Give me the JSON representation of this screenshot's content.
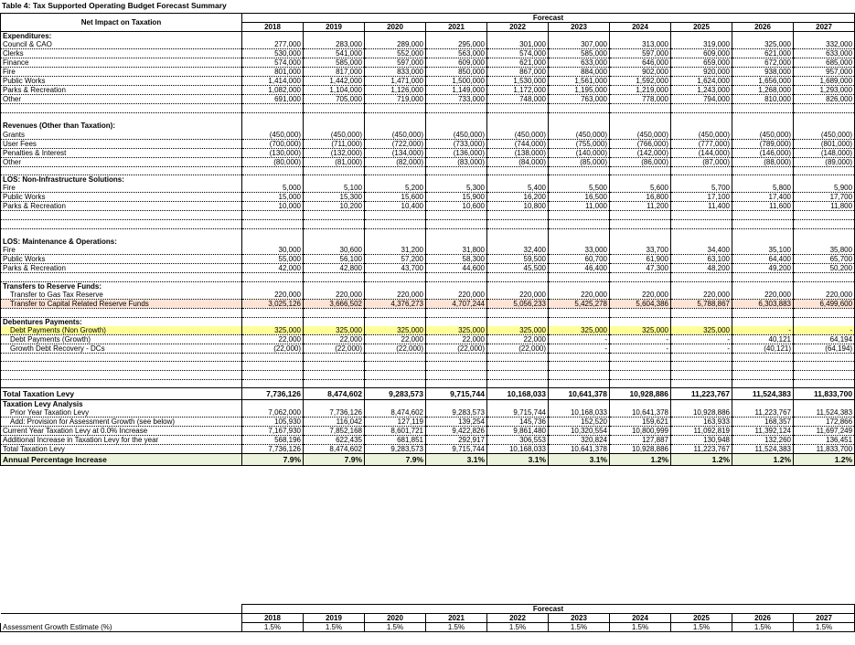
{
  "title": "Table 4: Tax Supported Operating Budget Forecast Summary",
  "header": {
    "row_label": "Net Impact on Taxation",
    "forecast": "Forecast",
    "years": [
      "2018",
      "2019",
      "2020",
      "2021",
      "2022",
      "2023",
      "2024",
      "2025",
      "2026",
      "2027"
    ]
  },
  "expenditures": {
    "heading": "Expenditures:",
    "rows": [
      {
        "label": "Council & CAO",
        "values": [
          "277,000",
          "283,000",
          "289,000",
          "295,000",
          "301,000",
          "307,000",
          "313,000",
          "319,000",
          "325,000",
          "332,000"
        ]
      },
      {
        "label": "Clerks",
        "values": [
          "530,000",
          "541,000",
          "552,000",
          "563,000",
          "574,000",
          "585,000",
          "597,000",
          "609,000",
          "621,000",
          "633,000"
        ]
      },
      {
        "label": "Finance",
        "values": [
          "574,000",
          "585,000",
          "597,000",
          "609,000",
          "621,000",
          "633,000",
          "646,000",
          "659,000",
          "672,000",
          "685,000"
        ]
      },
      {
        "label": "Fire",
        "values": [
          "801,000",
          "817,000",
          "833,000",
          "850,000",
          "867,000",
          "884,000",
          "902,000",
          "920,000",
          "938,000",
          "957,000"
        ]
      },
      {
        "label": "Public Works",
        "values": [
          "1,414,000",
          "1,442,000",
          "1,471,000",
          "1,500,000",
          "1,530,000",
          "1,561,000",
          "1,592,000",
          "1,624,000",
          "1,656,000",
          "1,689,000"
        ]
      },
      {
        "label": "Parks & Recreation",
        "values": [
          "1,082,000",
          "1,104,000",
          "1,126,000",
          "1,149,000",
          "1,172,000",
          "1,195,000",
          "1,219,000",
          "1,243,000",
          "1,268,000",
          "1,293,000"
        ]
      },
      {
        "label": "Other",
        "values": [
          "691,000",
          "705,000",
          "719,000",
          "733,000",
          "748,000",
          "763,000",
          "778,000",
          "794,000",
          "810,000",
          "826,000"
        ]
      }
    ]
  },
  "revenues": {
    "heading": "Revenues (Other than Taxation):",
    "rows": [
      {
        "label": "Grants",
        "values": [
          "(450,000)",
          "(450,000)",
          "(450,000)",
          "(450,000)",
          "(450,000)",
          "(450,000)",
          "(450,000)",
          "(450,000)",
          "(450,000)",
          "(450,000)"
        ]
      },
      {
        "label": "User Fees",
        "values": [
          "(700,000)",
          "(711,000)",
          "(722,000)",
          "(733,000)",
          "(744,000)",
          "(755,000)",
          "(766,000)",
          "(777,000)",
          "(789,000)",
          "(801,000)"
        ]
      },
      {
        "label": "Penalties & Interest",
        "values": [
          "(130,000)",
          "(132,000)",
          "(134,000)",
          "(136,000)",
          "(138,000)",
          "(140,000)",
          "(142,000)",
          "(144,000)",
          "(146,000)",
          "(148,000)"
        ]
      },
      {
        "label": "Other",
        "values": [
          "(80,000)",
          "(81,000)",
          "(82,000)",
          "(83,000)",
          "(84,000)",
          "(85,000)",
          "(86,000)",
          "(87,000)",
          "(88,000)",
          "(89,000)"
        ]
      }
    ]
  },
  "los_non_infra": {
    "heading": "LOS: Non-Infrastructure Solutions:",
    "rows": [
      {
        "label": "Fire",
        "values": [
          "5,000",
          "5,100",
          "5,200",
          "5,300",
          "5,400",
          "5,500",
          "5,600",
          "5,700",
          "5,800",
          "5,900"
        ]
      },
      {
        "label": "Public Works",
        "values": [
          "15,000",
          "15,300",
          "15,600",
          "15,900",
          "16,200",
          "16,500",
          "16,800",
          "17,100",
          "17,400",
          "17,700"
        ]
      },
      {
        "label": "Parks & Recreation",
        "values": [
          "10,000",
          "10,200",
          "10,400",
          "10,600",
          "10,800",
          "11,000",
          "11,200",
          "11,400",
          "11,600",
          "11,800"
        ]
      }
    ]
  },
  "los_maint": {
    "heading": "LOS: Maintenance & Operations:",
    "rows": [
      {
        "label": "Fire",
        "values": [
          "30,000",
          "30,600",
          "31,200",
          "31,800",
          "32,400",
          "33,000",
          "33,700",
          "34,400",
          "35,100",
          "35,800"
        ]
      },
      {
        "label": "Public Works",
        "values": [
          "55,000",
          "56,100",
          "57,200",
          "58,300",
          "59,500",
          "60,700",
          "61,900",
          "63,100",
          "64,400",
          "65,700"
        ]
      },
      {
        "label": "Parks & Recreation",
        "values": [
          "42,000",
          "42,800",
          "43,700",
          "44,600",
          "45,500",
          "46,400",
          "47,300",
          "48,200",
          "49,200",
          "50,200"
        ]
      }
    ]
  },
  "transfers": {
    "heading": "Transfers to Reserve Funds:",
    "rows": [
      {
        "label": "Transfer to Gas Tax Reserve",
        "values": [
          "220,000",
          "220,000",
          "220,000",
          "220,000",
          "220,000",
          "220,000",
          "220,000",
          "220,000",
          "220,000",
          "220,000"
        ]
      },
      {
        "label": "Transfer to Capital Related Reserve Funds",
        "values": [
          "3,025,126",
          "3,666,502",
          "4,376,273",
          "4,707,244",
          "5,056,233",
          "5,425,278",
          "5,604,386",
          "5,788,867",
          "6,303,883",
          "6,499,600"
        ]
      }
    ]
  },
  "debentures": {
    "heading": "Debentures Payments:",
    "rows": [
      {
        "label": "Debt Payments (Non Growth)",
        "values": [
          "325,000",
          "325,000",
          "325,000",
          "325,000",
          "325,000",
          "325,000",
          "325,000",
          "325,000",
          "-",
          "-"
        ]
      },
      {
        "label": "Debt Payments (Growth)",
        "values": [
          "22,000",
          "22,000",
          "22,000",
          "22,000",
          "22,000",
          "-",
          "-",
          "-",
          "40,121",
          "64,194"
        ]
      },
      {
        "label": "Growth Debt Recovery - DCs",
        "values": [
          "(22,000)",
          "(22,000)",
          "(22,000)",
          "(22,000)",
          "(22,000)",
          "-",
          "-",
          "-",
          "(40,121)",
          "(64,194)"
        ]
      }
    ]
  },
  "total_levy": {
    "label": "Total Taxation Levy",
    "values": [
      "7,736,126",
      "8,474,602",
      "9,283,573",
      "9,715,744",
      "10,168,033",
      "10,641,378",
      "10,928,886",
      "11,223,767",
      "11,524,383",
      "11,833,700"
    ]
  },
  "analysis": {
    "heading": "Taxation Levy Analysis",
    "rows": [
      {
        "label": "Prior Year Taxation Levy",
        "indent": true,
        "values": [
          "7,062,000",
          "7,736,126",
          "8,474,602",
          "9,283,573",
          "9,715,744",
          "10,168,033",
          "10,641,378",
          "10,928,886",
          "11,223,767",
          "11,524,383"
        ]
      },
      {
        "label": "Add: Provision for Assessment Growth (see below)",
        "indent": true,
        "values": [
          "105,930",
          "116,042",
          "127,119",
          "139,254",
          "145,736",
          "152,520",
          "159,621",
          "163,933",
          "168,357",
          "172,866"
        ]
      },
      {
        "label": "Current Year Taxation Levy at 0.0% Increase",
        "indent": false,
        "values": [
          "7,167,930",
          "7,852,168",
          "8,601,721",
          "9,422,826",
          "9,861,480",
          "10,320,554",
          "10,800,999",
          "11,092,819",
          "11,392,124",
          "11,697,249"
        ]
      },
      {
        "label": "Additional Increase in Taxation Levy for the year",
        "indent": false,
        "values": [
          "568,196",
          "622,435",
          "681,851",
          "292,917",
          "306,553",
          "320,824",
          "127,887",
          "130,948",
          "132,260",
          "136,451"
        ]
      },
      {
        "label": "Total Taxation Levy",
        "indent": false,
        "values": [
          "7,736,126",
          "8,474,602",
          "9,283,573",
          "9,715,744",
          "10,168,033",
          "10,641,378",
          "10,928,886",
          "11,223,767",
          "11,524,383",
          "11,833,700"
        ]
      }
    ]
  },
  "annual_increase": {
    "label": "Annual Percentage Increase",
    "values": [
      "7.9%",
      "7.9%",
      "7.9%",
      "3.1%",
      "3.1%",
      "3.1%",
      "1.2%",
      "1.2%",
      "1.2%",
      "1.2%"
    ]
  },
  "assessment": {
    "forecast": "Forecast",
    "years": [
      "2018",
      "2019",
      "2020",
      "2021",
      "2022",
      "2023",
      "2024",
      "2025",
      "2026",
      "2027"
    ],
    "label": "Assessment Growth Estimate (%)",
    "values": [
      "1.5%",
      "1.5%",
      "1.5%",
      "1.5%",
      "1.5%",
      "1.5%",
      "1.5%",
      "1.5%",
      "1.5%",
      "1.5%"
    ]
  }
}
